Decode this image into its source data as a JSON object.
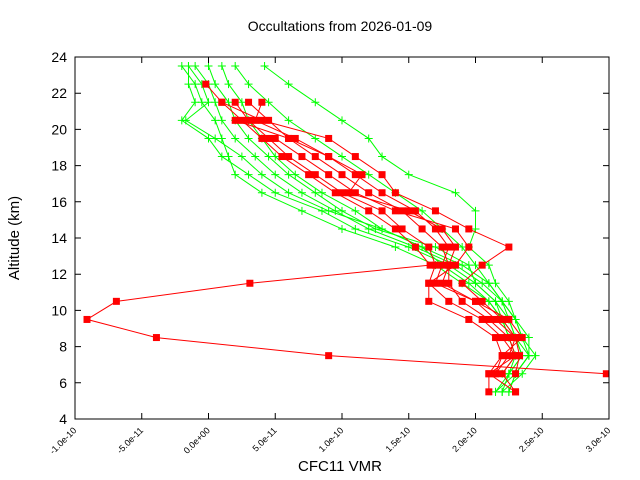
{
  "chart_data": {
    "type": "line",
    "title": "Occultations from 2026-01-09",
    "xlabel": "CFC11 VMR",
    "ylabel": "Altitude (km)",
    "xlim": [
      -1e-10,
      3e-10
    ],
    "ylim": [
      4,
      24
    ],
    "grid": false,
    "x_ticks": [
      -1e-10,
      -5e-11,
      0,
      5e-11,
      1e-10,
      1.5e-10,
      2e-10,
      2.5e-10,
      3e-10
    ],
    "x_tick_labels": [
      "-1.0e-10",
      "-5.0e-11",
      "0.0e+00",
      "5.0e-11",
      "1.0e-10",
      "1.5e-10",
      "2.0e-10",
      "2.5e-10",
      "3.0e-10"
    ],
    "y_ticks": [
      4,
      6,
      8,
      10,
      12,
      14,
      16,
      18,
      20,
      22,
      24
    ],
    "y_tick_labels": [
      "4",
      "6",
      "8",
      "10",
      "12",
      "14",
      "16",
      "18",
      "20",
      "22",
      "24"
    ],
    "colors": {
      "red_series": "#ff0000",
      "green_series": "#00ff00"
    },
    "green_series": [
      {
        "marker": "plus",
        "y": [
          23.5,
          22.5,
          21.5,
          20.5,
          19.5,
          18.5,
          17.5,
          16.5,
          15.5,
          14.5,
          13.5,
          12.5,
          11.5,
          10.5,
          9.5,
          8.5,
          7.5,
          6.5,
          5.5
        ],
        "x": [
          -2e-11,
          -1e-11,
          -5e-12,
          5e-12,
          1e-11,
          1.5e-11,
          2e-11,
          4e-11,
          7e-11,
          1e-10,
          1.4e-10,
          1.7e-10,
          1.9e-10,
          2.1e-10,
          2.2e-10,
          2.3e-10,
          2.4e-10,
          2.3e-10,
          2.15e-10
        ]
      },
      {
        "marker": "plus",
        "y": [
          23.5,
          22.5,
          21.5,
          20.5,
          19.5,
          18.5,
          17.5,
          16.5,
          15.5,
          14.5,
          13.5,
          12.5,
          11.5,
          10.5,
          9.5,
          8.5,
          7.5,
          6.5,
          5.5
        ],
        "x": [
          -1.5e-11,
          -1.5e-11,
          -1e-11,
          -2e-11,
          0,
          1e-11,
          3e-11,
          5e-11,
          8.5e-11,
          1.1e-10,
          1.5e-10,
          1.8e-10,
          2e-10,
          2.15e-10,
          2.25e-10,
          2.3e-10,
          2.35e-10,
          2.25e-10,
          2.2e-10
        ]
      },
      {
        "marker": "plus",
        "y": [
          23.5,
          22.5,
          21.5,
          20.5,
          19.5,
          18.5,
          17.5,
          16.5,
          15.5,
          14.5,
          13.5,
          12.5,
          11.5,
          10.5,
          9.5,
          8.5,
          7.5,
          6.5,
          5.5
        ],
        "x": [
          -1e-11,
          0,
          5e-12,
          1e-11,
          2e-11,
          3.5e-11,
          5e-11,
          7e-11,
          9.5e-11,
          1.2e-10,
          1.55e-10,
          1.85e-10,
          2.05e-10,
          2.2e-10,
          2.3e-10,
          2.35e-10,
          2.45e-10,
          2.35e-10,
          2.2e-10
        ]
      },
      {
        "marker": "plus",
        "y": [
          23.5,
          22.5,
          21.5,
          20.5,
          19.5,
          18.5,
          17.5,
          16.5,
          15.5,
          14.5,
          13.5,
          12.5,
          11.5,
          10.5,
          9.5,
          8.5,
          7.5,
          6.5,
          5.5
        ],
        "x": [
          1e-11,
          1.5e-11,
          2.5e-11,
          3e-11,
          4e-11,
          5e-11,
          6.5e-11,
          8.5e-11,
          1.1e-10,
          1.3e-10,
          1.6e-10,
          1.9e-10,
          2.1e-10,
          2.2e-10,
          2.3e-10,
          2.4e-10,
          2.4e-10,
          2.3e-10,
          2.25e-10
        ]
      },
      {
        "marker": "plus",
        "y": [
          23.5,
          22.5,
          21.5,
          20.5,
          19.5,
          18.5,
          17.5,
          16.5,
          15.5,
          14.5,
          13.5,
          12.5,
          11.5,
          10.5,
          9.5,
          8.5,
          7.5,
          6.5,
          5.5
        ],
        "x": [
          4.2e-11,
          6e-11,
          8e-11,
          1e-10,
          1.2e-10,
          1.3e-10,
          1.5e-10,
          1.85e-10,
          2e-10,
          2e-10,
          1.95e-10,
          2.1e-10,
          2.15e-10,
          2.25e-10,
          2.3e-10,
          2.35e-10,
          2.4e-10,
          2.3e-10,
          2.25e-10
        ]
      },
      {
        "marker": "plus",
        "y": [
          23.5,
          22.5,
          21.5,
          20.5,
          19.5,
          18.5,
          17.5,
          16.5,
          15.5,
          14.5,
          13.5,
          12.5,
          11.5,
          10.5,
          9.5,
          8.5,
          7.5,
          6.5
        ],
        "x": [
          2e-11,
          3e-11,
          4.5e-11,
          6e-11,
          8e-11,
          1e-10,
          1.2e-10,
          1.4e-10,
          1.6e-10,
          1.75e-10,
          1.9e-10,
          2e-10,
          2.1e-10,
          2.2e-10,
          2.25e-10,
          2.3e-10,
          2.35e-10,
          2.25e-10
        ]
      },
      {
        "marker": "plus",
        "y": [
          23.5,
          22.5,
          21.5,
          20.5,
          19.5,
          18.5,
          17.5,
          16.5,
          15.5,
          14.5,
          13.5,
          12.5,
          11.5,
          10.5,
          9.5,
          8.5,
          7.5,
          6.5,
          5.5
        ],
        "x": [
          -1.5e-11,
          -5e-12,
          0,
          -1.7e-11,
          5e-12,
          2.5e-11,
          4e-11,
          6e-11,
          9e-11,
          1.3e-10,
          1.6e-10,
          1.75e-10,
          1.95e-10,
          2.1e-10,
          2.2e-10,
          2.25e-10,
          2.3e-10,
          2.25e-10,
          2.15e-10
        ]
      },
      {
        "marker": "plus",
        "y": [
          23.5,
          22.5,
          21.5,
          20.5,
          19.5,
          18.5,
          17.5,
          16.5,
          15.5,
          14.5,
          13.5,
          12.5,
          11.5,
          10.5,
          9.5,
          8.5,
          7.5,
          6.5
        ],
        "x": [
          0,
          5e-12,
          1.5e-11,
          2e-11,
          3e-11,
          4.5e-11,
          6e-11,
          8e-11,
          1e-10,
          1.25e-10,
          1.7e-10,
          1.95e-10,
          2e-10,
          2.15e-10,
          2.2e-10,
          2.25e-10,
          2.3e-10,
          2.2e-10
        ]
      }
    ],
    "red_series": [
      {
        "marker": "square",
        "y": [
          22.5,
          21.5,
          20.5,
          19.5,
          18.5,
          17.5,
          16.5,
          15.5,
          14.5,
          13.5,
          12.5,
          11.5,
          10.5,
          9.5,
          8.5,
          7.5,
          6.5
        ],
        "x": [
          -2e-12,
          1e-11,
          2.5e-11,
          4e-11,
          5.5e-11,
          7.5e-11,
          9.5e-11,
          1.2e-10,
          1.4e-10,
          1.55e-10,
          1.66e-10,
          3.1e-11,
          -6.9e-11,
          -9.1e-11,
          -3.9e-11,
          9e-11,
          2.98e-10
        ]
      },
      {
        "marker": "square",
        "y": [
          21.5,
          20.5,
          19.5,
          18.5,
          17.5,
          16.5,
          15.5,
          14.5,
          13.5,
          12.5,
          11.5,
          10.5,
          9.5,
          8.5,
          7.5,
          6.5,
          5.5
        ],
        "x": [
          2e-11,
          3e-11,
          4.5e-11,
          6e-11,
          8e-11,
          1e-10,
          1.3e-10,
          1.45e-10,
          1.65e-10,
          1.7e-10,
          1.65e-10,
          1.65e-10,
          1.95e-10,
          2.15e-10,
          2.2e-10,
          2.1e-10,
          2.1e-10
        ]
      },
      {
        "marker": "square",
        "y": [
          21.5,
          20.5,
          19.5,
          18.5,
          17.5,
          16.5,
          15.5,
          14.5,
          13.5,
          12.5,
          11.5,
          10.5,
          9.5,
          8.5,
          7.5,
          6.5,
          5.5
        ],
        "x": [
          3e-11,
          4.5e-11,
          6e-11,
          8e-11,
          1e-10,
          1.2e-10,
          1.45e-10,
          1.6e-10,
          1.75e-10,
          1.8e-10,
          1.8e-10,
          1.9e-10,
          2.1e-10,
          2.25e-10,
          2.3e-10,
          2.2e-10,
          2.3e-10
        ]
      },
      {
        "marker": "square",
        "y": [
          21.5,
          20.5,
          19.5,
          18.5,
          17.5,
          16.5,
          15.5,
          14.5,
          13.5,
          12.5,
          11.5,
          10.5,
          9.5,
          8.5,
          7.5,
          6.5
        ],
        "x": [
          4e-11,
          3.5e-11,
          6.5e-11,
          9e-11,
          1.1e-10,
          1.3e-10,
          1.55e-10,
          1.7e-10,
          1.8e-10,
          1.75e-10,
          1.7e-10,
          2e-10,
          2.15e-10,
          2.3e-10,
          2.33e-10,
          2.3e-10
        ]
      },
      {
        "marker": "square",
        "y": [
          21.5,
          20.5,
          19.5,
          18.5,
          17.5,
          16.5,
          15.5,
          14.5,
          13.5,
          12.5,
          11.5,
          10.5,
          9.5,
          8.5,
          7.5,
          6.5
        ],
        "x": [
          1e-11,
          4e-11,
          9e-11,
          1.1e-10,
          1.3e-10,
          1.4e-10,
          1.7e-10,
          1.95e-10,
          2.25e-10,
          2.05e-10,
          1.9e-10,
          2.05e-10,
          2.2e-10,
          2.3e-10,
          2.25e-10,
          2.15e-10
        ]
      },
      {
        "marker": "square",
        "y": [
          19.5,
          18.5,
          17.5,
          16.5,
          15.5,
          14.5,
          13.5,
          12.5,
          11.5,
          10.5,
          9.5,
          8.5,
          7.5,
          6.5,
          5.5
        ],
        "x": [
          5e-11,
          7e-11,
          9e-11,
          1.1e-10,
          1.4e-10,
          1.85e-10,
          1.95e-10,
          1.85e-10,
          1.65e-10,
          1.8e-10,
          2.05e-10,
          2.2e-10,
          2.3e-10,
          2.1e-10,
          2.3e-10
        ]
      },
      {
        "marker": "square",
        "y": [
          20.5,
          19.5,
          18.5,
          17.5,
          16.5,
          15.5,
          14.5,
          13.5,
          12.5,
          11.5,
          10.5,
          9.5,
          8.5,
          7.5,
          6.5
        ],
        "x": [
          2e-11,
          6e-11,
          9e-11,
          1.15e-10,
          1.05e-10,
          1.5e-10,
          1.75e-10,
          1.85e-10,
          1.8e-10,
          1.75e-10,
          2e-10,
          2.25e-10,
          2.35e-10,
          2.2e-10,
          2.15e-10
        ]
      }
    ]
  }
}
